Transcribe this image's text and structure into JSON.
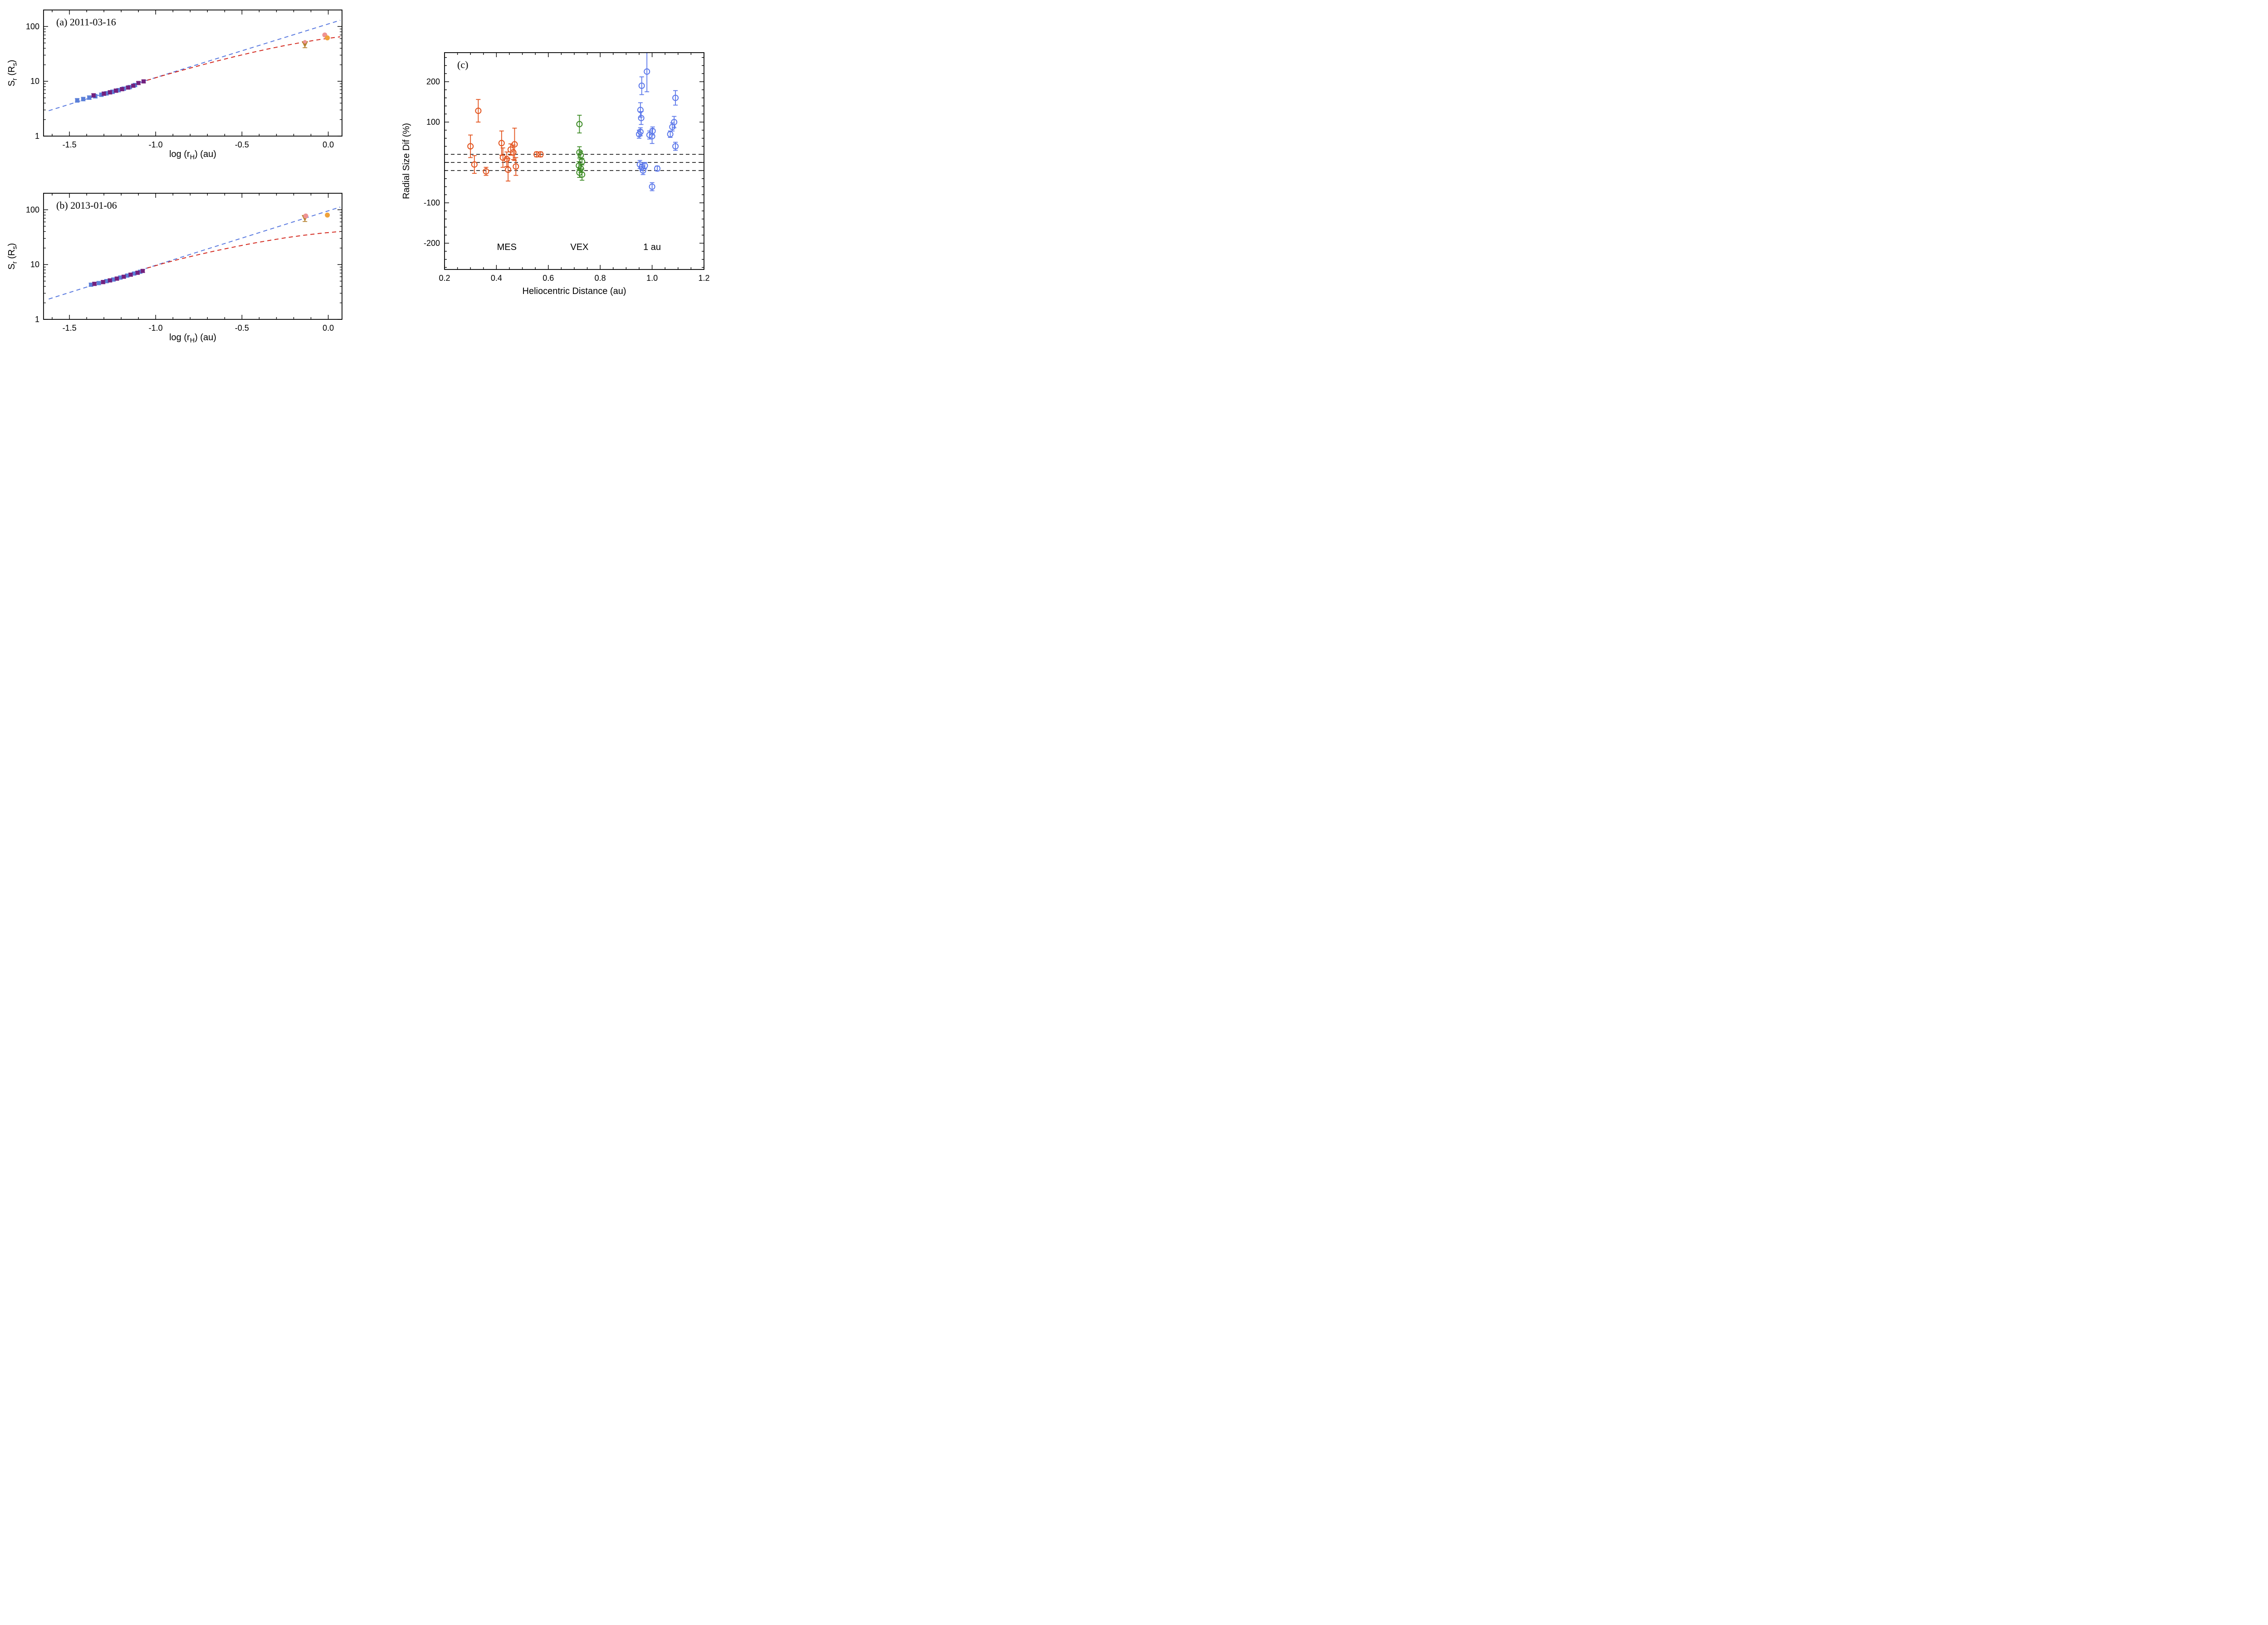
{
  "figure": {
    "background": "#ffffff"
  },
  "chart_data": [
    {
      "id": "a",
      "type": "scatter",
      "title": "(a) 2011-03-16",
      "xlabel_parts": [
        {
          "t": "log (r"
        },
        {
          "t": "H",
          "sub": true
        },
        {
          "t": ") (au)"
        }
      ],
      "ylabel_parts": [
        {
          "t": "S"
        },
        {
          "t": "r",
          "sub": true
        },
        {
          "t": " (R"
        },
        {
          "t": "s",
          "sub": true
        },
        {
          "t": ")"
        }
      ],
      "xlim": [
        -1.65,
        0.08
      ],
      "ylog": true,
      "ylim": [
        1,
        200
      ],
      "xticks": [
        -1.5,
        -1.0,
        -0.5,
        0.0
      ],
      "xticklabels": [
        "-1.5",
        "-1.0",
        "-0.5",
        "0.0"
      ],
      "xminor_step": 0.1,
      "lines": [
        {
          "name": "ballistic-model",
          "color": "#5b7be0",
          "points": [
            [
              -1.62,
              2.9
            ],
            [
              0.07,
              130
            ]
          ]
        },
        {
          "name": "drag-model",
          "color": "#d42a20",
          "points": [
            [
              -1.05,
              10.4
            ],
            [
              -0.95,
              12.9
            ],
            [
              -0.85,
              15.8
            ],
            [
              -0.75,
              19.2
            ],
            [
              -0.65,
              23.2
            ],
            [
              -0.55,
              27.8
            ],
            [
              -0.45,
              33.0
            ],
            [
              -0.35,
              38.8
            ],
            [
              -0.25,
              45.0
            ],
            [
              -0.15,
              51.4
            ],
            [
              -0.05,
              57.8
            ],
            [
              0.02,
              62.0
            ],
            [
              0.07,
              64.8
            ]
          ]
        }
      ],
      "series": [
        {
          "name": "blue-squares",
          "marker": "square",
          "color": "#5b7fd8",
          "points": [
            [
              -1.455,
              4.5,
              0.35
            ],
            [
              -1.42,
              4.75,
              0.35
            ],
            [
              -1.385,
              5.05,
              0.38
            ],
            [
              -1.35,
              5.35,
              0.4
            ],
            [
              -1.315,
              5.7,
              0.42
            ],
            [
              -1.285,
              6.05,
              0.45
            ],
            [
              -1.25,
              6.45,
              0.48
            ],
            [
              -1.215,
              6.9,
              0.5
            ],
            [
              -1.185,
              7.35,
              0.52
            ],
            [
              -1.15,
              7.85,
              0.55
            ],
            [
              -1.12,
              8.55,
              0.6
            ]
          ]
        },
        {
          "name": "purple-squares",
          "marker": "square",
          "color": "#73217e",
          "points": [
            [
              -1.36,
              5.55,
              0.4
            ],
            [
              -1.3,
              5.95,
              0.42
            ],
            [
              -1.265,
              6.3,
              0.45
            ],
            [
              -1.23,
              6.75,
              0.48
            ],
            [
              -1.195,
              7.2,
              0.5
            ],
            [
              -1.16,
              7.7,
              0.52
            ],
            [
              -1.13,
              8.3,
              0.55
            ],
            [
              -1.1,
              9.3,
              0.6
            ],
            [
              -1.07,
              9.95,
              0.62
            ]
          ]
        },
        {
          "name": "tan-triangle",
          "marker": "triangle-down",
          "color": "#b5812e",
          "points": [
            [
              -0.135,
              47,
              6
            ]
          ]
        },
        {
          "name": "salmon-dot-small",
          "marker": "circle",
          "size": 8,
          "color": "#ef9393",
          "points": [
            [
              -0.135,
              52.5,
              0
            ]
          ]
        },
        {
          "name": "salmon-circle",
          "marker": "circle",
          "color": "#ef9393",
          "points": [
            [
              -0.02,
              70,
              0
            ]
          ]
        },
        {
          "name": "orange-circle",
          "marker": "circle",
          "color": "#efa23a",
          "points": [
            [
              -0.005,
              62,
              0
            ]
          ]
        }
      ]
    },
    {
      "id": "b",
      "type": "scatter",
      "title": "(b) 2013-01-06",
      "xlabel_parts": [
        {
          "t": "log (r"
        },
        {
          "t": "H",
          "sub": true
        },
        {
          "t": ") (au)"
        }
      ],
      "ylabel_parts": [
        {
          "t": "S"
        },
        {
          "t": "r",
          "sub": true
        },
        {
          "t": " (R"
        },
        {
          "t": "s",
          "sub": true
        },
        {
          "t": ")"
        }
      ],
      "xlim": [
        -1.65,
        0.08
      ],
      "ylog": true,
      "ylim": [
        1,
        200
      ],
      "xticks": [
        -1.5,
        -1.0,
        -0.5,
        0.0
      ],
      "xticklabels": [
        "-1.5",
        "-1.0",
        "-0.5",
        "0.0"
      ],
      "xminor_step": 0.1,
      "lines": [
        {
          "name": "ballistic-model",
          "color": "#5b7be0",
          "points": [
            [
              -1.62,
              2.35
            ],
            [
              0.07,
              112
            ]
          ]
        },
        {
          "name": "drag-model",
          "color": "#d42a20",
          "points": [
            [
              -1.05,
              8.6
            ],
            [
              -0.95,
              10.6
            ],
            [
              -0.85,
              12.8
            ],
            [
              -0.75,
              15.2
            ],
            [
              -0.65,
              17.9
            ],
            [
              -0.55,
              20.8
            ],
            [
              -0.45,
              24.0
            ],
            [
              -0.35,
              27.3
            ],
            [
              -0.25,
              30.7
            ],
            [
              -0.15,
              34.0
            ],
            [
              -0.05,
              37.0
            ],
            [
              0.02,
              38.8
            ],
            [
              0.07,
              40.0
            ]
          ]
        }
      ],
      "series": [
        {
          "name": "blue-squares",
          "marker": "square",
          "color": "#5b7fd8",
          "points": [
            [
              -1.375,
              4.3,
              0.3
            ],
            [
              -1.33,
              4.6,
              0.32
            ],
            [
              -1.285,
              5.0,
              0.35
            ],
            [
              -1.245,
              5.35,
              0.38
            ],
            [
              -1.205,
              5.8,
              0.4
            ],
            [
              -1.165,
              6.3,
              0.42
            ],
            [
              -1.125,
              6.85,
              0.45
            ],
            [
              -1.09,
              7.4,
              0.48
            ]
          ]
        },
        {
          "name": "purple-squares",
          "marker": "square",
          "color": "#73217e",
          "points": [
            [
              -1.355,
              4.45,
              0.3
            ],
            [
              -1.305,
              4.8,
              0.33
            ],
            [
              -1.265,
              5.15,
              0.35
            ],
            [
              -1.225,
              5.55,
              0.38
            ],
            [
              -1.185,
              6.0,
              0.4
            ],
            [
              -1.145,
              6.55,
              0.43
            ],
            [
              -1.105,
              7.1,
              0.46
            ],
            [
              -1.075,
              7.65,
              0.48
            ]
          ]
        },
        {
          "name": "tan-triangle",
          "marker": "triangle-down",
          "color": "#b5812e",
          "points": [
            [
              -0.135,
              70,
              9
            ]
          ]
        },
        {
          "name": "salmon-circle",
          "marker": "circle",
          "color": "#ef9393",
          "points": [
            [
              -0.13,
              77,
              0
            ]
          ]
        },
        {
          "name": "orange-circle",
          "marker": "circle",
          "color": "#efa23a",
          "points": [
            [
              -0.005,
              80,
              0
            ]
          ]
        }
      ]
    },
    {
      "id": "c",
      "type": "scatter",
      "title": "(c)",
      "xlabel_parts": [
        {
          "t": "Heliocentric Distance (au)"
        }
      ],
      "ylabel_parts": [
        {
          "t": "Radial Size Dif (%)"
        }
      ],
      "xlim": [
        0.2,
        1.2
      ],
      "ylog": false,
      "ylim": [
        -265,
        272
      ],
      "xticks": [
        0.2,
        0.4,
        0.6,
        0.8,
        1.0,
        1.2
      ],
      "xticklabels": [
        "0.2",
        "0.4",
        "0.6",
        "0.8",
        "1.0",
        "1.2"
      ],
      "xminor_step": 0.05,
      "yticks": [
        -200,
        -100,
        0,
        100,
        200
      ],
      "yticklabels": [
        "-200",
        "-100",
        "",
        "100",
        "200"
      ],
      "yminor_step": 20,
      "hlines": [
        {
          "y": 20
        },
        {
          "y": 0
        },
        {
          "y": -20
        }
      ],
      "series": [
        {
          "name": "MES",
          "marker": "circle-open",
          "color": "#e2521c",
          "points": [
            [
              0.3,
              40,
              28
            ],
            [
              0.315,
              -5,
              22
            ],
            [
              0.33,
              128,
              28
            ],
            [
              0.36,
              -22,
              10
            ],
            [
              0.42,
              48,
              30
            ],
            [
              0.425,
              12,
              24
            ],
            [
              0.44,
              8,
              18
            ],
            [
              0.445,
              -18,
              28
            ],
            [
              0.455,
              32,
              14
            ],
            [
              0.465,
              25,
              18
            ],
            [
              0.47,
              45,
              40
            ],
            [
              0.475,
              -10,
              22
            ],
            [
              0.555,
              20,
              6
            ],
            [
              0.57,
              20,
              6
            ]
          ]
        },
        {
          "name": "VEX",
          "marker": "circle-open",
          "color": "#3e8c27",
          "points": [
            [
              0.72,
              95,
              22
            ],
            [
              0.72,
              25,
              14
            ],
            [
              0.725,
              18,
              10
            ],
            [
              0.718,
              -8,
              10
            ],
            [
              0.725,
              -15,
              10
            ],
            [
              0.72,
              -25,
              12
            ],
            [
              0.73,
              -30,
              14
            ],
            [
              0.73,
              2,
              8
            ]
          ]
        },
        {
          "name": "1au",
          "marker": "circle-open",
          "color": "#5c78ea",
          "points": [
            [
              0.95,
              70,
              10
            ],
            [
              0.955,
              76,
              10
            ],
            [
              0.958,
              110,
              16
            ],
            [
              0.955,
              130,
              18
            ],
            [
              0.96,
              190,
              22
            ],
            [
              0.953,
              -5,
              10
            ],
            [
              0.96,
              -12,
              8
            ],
            [
              0.965,
              -20,
              10
            ],
            [
              0.972,
              -8,
              8
            ],
            [
              0.98,
              225,
              50
            ],
            [
              0.99,
              68,
              10
            ],
            [
              1.0,
              65,
              18
            ],
            [
              1.002,
              78,
              10
            ],
            [
              1.0,
              -60,
              10
            ],
            [
              1.02,
              -15,
              6
            ],
            [
              1.07,
              70,
              8
            ],
            [
              1.078,
              88,
              10
            ],
            [
              1.085,
              100,
              14
            ],
            [
              1.09,
              160,
              18
            ],
            [
              1.09,
              40,
              10
            ]
          ]
        }
      ],
      "legend_position": "inside-bottom",
      "legend": [
        {
          "label": "MES",
          "color": "#e2521c",
          "x": 0.44,
          "y": -210
        },
        {
          "label": "VEX",
          "color": "#3e8c27",
          "x": 0.72,
          "y": -210
        },
        {
          "label": "1 au",
          "color": "#5c78ea",
          "x": 1.0,
          "y": -210
        }
      ]
    }
  ]
}
